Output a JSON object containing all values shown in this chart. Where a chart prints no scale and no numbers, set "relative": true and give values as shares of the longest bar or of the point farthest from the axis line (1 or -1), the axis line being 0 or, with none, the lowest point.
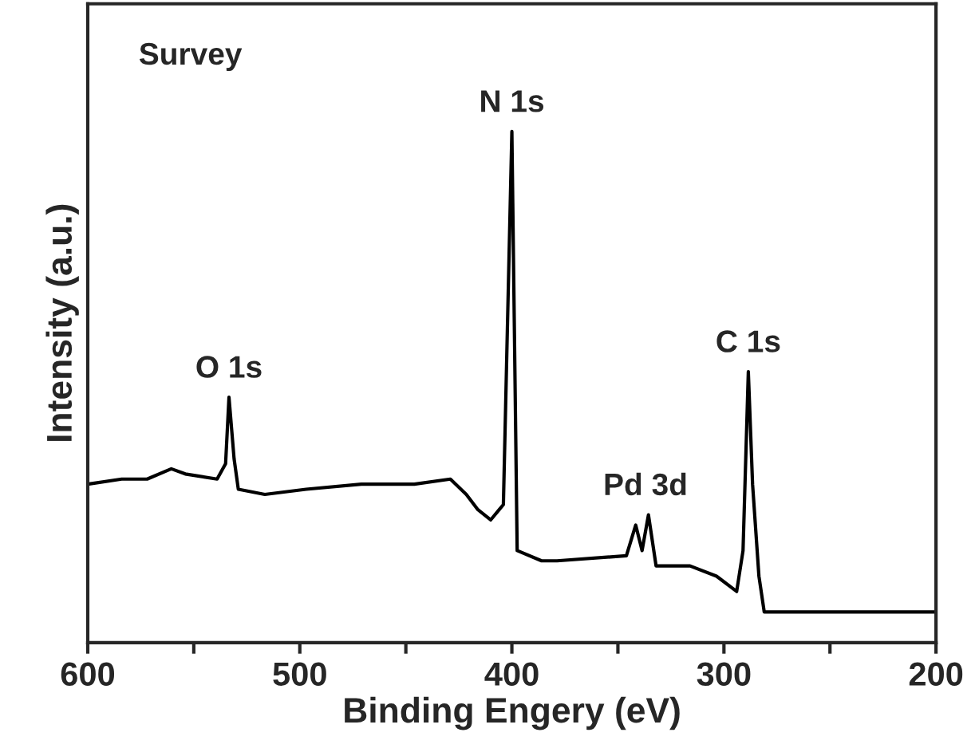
{
  "chart_data": {
    "type": "line",
    "relative": true,
    "xlabel": "Binding Engery (eV)",
    "ylabel": "Intensity (a.u.)",
    "xlim": [
      600,
      200
    ],
    "xticks": [
      600,
      {
        "value": 550,
        "label": null
      },
      500,
      {
        "value": 450,
        "label": null
      },
      400,
      {
        "value": 350,
        "label": null
      },
      300,
      {
        "value": 250,
        "label": null
      },
      200
    ],
    "annotations": [
      "Survey",
      {
        "text": "O 1s",
        "x": 533.4,
        "y": 0.48
      },
      {
        "text": "N 1s",
        "x": 400,
        "y": 1.0
      },
      {
        "text": "Pd 3d",
        "x": 337,
        "y": 0.25
      },
      {
        "text": "C 1s",
        "x": 288.5,
        "y": 0.53
      }
    ],
    "series": [
      {
        "color": "#000000",
        "x": [
          600,
          584,
          572,
          560.6,
          554,
          539,
          535,
          533.4,
          531,
          529,
          516.5,
          497,
          471,
          446,
          429,
          421.5,
          416,
          410,
          406,
          404,
          400,
          397.5,
          386,
          378.7,
          346,
          341.6,
          338.6,
          335.6,
          332,
          316,
          303.5,
          294,
          291,
          288.5,
          286.5,
          283.5,
          281,
          241,
          200
        ],
        "values": [
          0.31,
          0.32,
          0.32,
          0.34,
          0.33,
          0.32,
          0.35,
          0.48,
          0.36,
          0.3,
          0.29,
          0.3,
          0.31,
          0.31,
          0.32,
          0.29,
          0.26,
          0.24,
          0.26,
          0.27,
          1.0,
          0.18,
          0.16,
          0.16,
          0.17,
          0.23,
          0.18,
          0.25,
          0.15,
          0.15,
          0.13,
          0.1,
          0.18,
          0.53,
          0.31,
          0.13,
          0.06,
          0.06,
          0.06
        ]
      }
    ]
  }
}
